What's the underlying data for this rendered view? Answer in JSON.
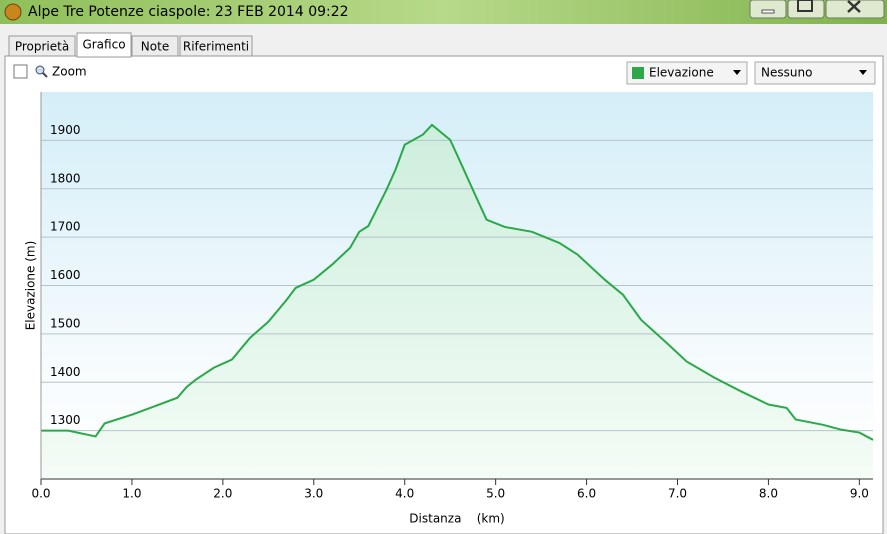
{
  "window": {
    "title": "Alpe Tre Potenze ciaspole: 23 FEB 2014 09:22"
  },
  "tabs": [
    "Proprietà",
    "Grafico",
    "Note",
    "Riferimenti"
  ],
  "toolbar": {
    "zoom": "Zoom",
    "dropdown_2": "Nessuno"
  },
  "chart_data": {
    "type": "line",
    "xlabel": "Distanza    (km)",
    "ylabel": "Elevazione (m)",
    "x": [
      0,
      0.3,
      0.6,
      0.7,
      1.0,
      1.2,
      1.5,
      1.6,
      1.7,
      1.9,
      2.1,
      2.3,
      2.5,
      2.7,
      2.8,
      3.0,
      3.2,
      3.4,
      3.5,
      3.6,
      3.8,
      3.9,
      4.0,
      4.2,
      4.3,
      4.5,
      4.6,
      4.8,
      4.9,
      5.1,
      5.4,
      5.7,
      5.9,
      6.2,
      6.4,
      6.6,
      6.9,
      7.1,
      7.4,
      7.7,
      8.0,
      8.2,
      8.3,
      8.6,
      8.8,
      9.0,
      9.15
    ],
    "series": [
      {
        "name": "Elevazione",
        "color": "#2ba84a",
        "values": [
          1300,
          1300,
          1288,
          1315,
          1333,
          1347,
          1368,
          1390,
          1405,
          1430,
          1447,
          1492,
          1525,
          1570,
          1595,
          1612,
          1643,
          1678,
          1711,
          1723,
          1798,
          1840,
          1891,
          1912,
          1932,
          1901,
          1860,
          1777,
          1736,
          1721,
          1711,
          1688,
          1664,
          1612,
          1581,
          1529,
          1478,
          1443,
          1410,
          1381,
          1354,
          1347,
          1323,
          1312,
          1302,
          1296,
          1281
        ]
      }
    ],
    "xlim": [
      0,
      9.15
    ],
    "ylim": [
      1200,
      2000
    ],
    "xticks": [
      {
        "value": 0,
        "label": "0.0"
      },
      {
        "value": 1,
        "label": "1.0"
      },
      {
        "value": 2,
        "label": "2.0"
      },
      {
        "value": 3,
        "label": "3.0"
      },
      {
        "value": 4,
        "label": "4.0"
      },
      {
        "value": 5,
        "label": "5.0"
      },
      {
        "value": 6,
        "label": "6.0"
      },
      {
        "value": 7,
        "label": "7.0"
      },
      {
        "value": 8,
        "label": "8.0"
      },
      {
        "value": 9,
        "label": "9.0"
      }
    ],
    "yticks": [
      1300,
      1400,
      1500,
      1600,
      1700,
      1800,
      1900
    ],
    "grid": true
  }
}
